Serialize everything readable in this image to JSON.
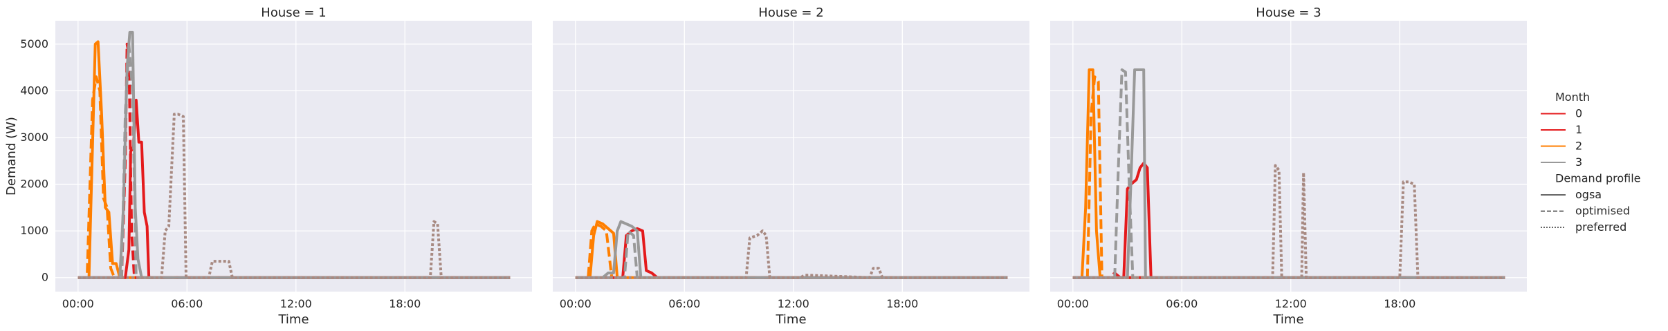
{
  "chart_data": {
    "type": "line",
    "facet_variable": "House",
    "panels": [
      {
        "title": "House = 1",
        "house": 1
      },
      {
        "title": "House = 2",
        "house": 2
      },
      {
        "title": "House = 3",
        "house": 3
      }
    ],
    "xlabel": "Time",
    "ylabel": "Demand (W)",
    "x_ticks": [
      "00:00",
      "06:00",
      "12:00",
      "18:00"
    ],
    "y_ticks": [
      0,
      1000,
      2000,
      3000,
      4000,
      5000
    ],
    "xlim_hours": [
      -1.25,
      25
    ],
    "ylim": [
      -300,
      5500
    ],
    "grid": true,
    "legend_position": "right",
    "legend": {
      "hue_title": "Month",
      "hue_entries": [
        {
          "label": "0",
          "color": "#e41a1c"
        },
        {
          "label": "1",
          "color": "#e41a1c"
        },
        {
          "label": "2",
          "color": "#ff7f00"
        },
        {
          "label": "3",
          "color": "#999999"
        }
      ],
      "style_title": "Demand profile",
      "style_entries": [
        {
          "label": "ogsa",
          "dash": "solid"
        },
        {
          "label": "optimised",
          "dash": "dashed"
        },
        {
          "label": "preferred",
          "dash": "dotted"
        }
      ]
    },
    "series": [
      {
        "house": 1,
        "month": "2",
        "profile": "ogsa",
        "color": "#ff7f00",
        "x": [
          0,
          0.6,
          0.95,
          1.1,
          1.3,
          1.5,
          1.7,
          1.9,
          2.1,
          2.3,
          23.8
        ],
        "y": [
          0,
          0,
          5000,
          5050,
          3500,
          1500,
          1400,
          300,
          300,
          0,
          0
        ]
      },
      {
        "house": 1,
        "month": "2",
        "profile": "optimised",
        "color": "#ff7f00",
        "x": [
          0,
          0.5,
          0.8,
          1.0,
          1.2,
          1.4,
          1.6,
          1.8,
          2.0,
          23.8
        ],
        "y": [
          0,
          0,
          3800,
          4300,
          4000,
          1700,
          1500,
          200,
          0,
          0
        ]
      },
      {
        "house": 1,
        "month": "1",
        "profile": "ogsa",
        "color": "#e41a1c",
        "x": [
          0,
          2.6,
          2.8,
          2.9,
          3.05,
          3.2,
          3.35,
          3.5,
          3.65,
          3.8,
          3.9,
          23.8
        ],
        "y": [
          0,
          0,
          600,
          2700,
          2800,
          3800,
          2900,
          2900,
          1400,
          1100,
          0,
          0
        ]
      },
      {
        "house": 1,
        "month": "0",
        "profile": "optimised",
        "color": "#e41a1c",
        "x": [
          0,
          2.4,
          2.6,
          2.7,
          2.8,
          2.95,
          3.1,
          23.8
        ],
        "y": [
          0,
          0,
          2500,
          5000,
          4800,
          1000,
          0,
          0
        ]
      },
      {
        "house": 1,
        "month": "3",
        "profile": "ogsa",
        "color": "#999999",
        "x": [
          0,
          2.3,
          2.5,
          2.7,
          2.85,
          3.0,
          3.15,
          3.3,
          3.5,
          23.8
        ],
        "y": [
          0,
          0,
          1500,
          4500,
          5250,
          5250,
          1500,
          400,
          0,
          0
        ]
      },
      {
        "house": 1,
        "month": "3",
        "profile": "optimised",
        "color": "#999999",
        "x": [
          0,
          2.4,
          2.6,
          2.8,
          3.0,
          3.2,
          23.8
        ],
        "y": [
          0,
          0,
          3500,
          5000,
          4000,
          0,
          0
        ]
      },
      {
        "house": 1,
        "month": "3",
        "profile": "preferred",
        "color": "#a88a82",
        "x": [
          0,
          4.6,
          4.8,
          5.0,
          5.3,
          5.5,
          5.8,
          5.95,
          6.1,
          7.2,
          7.4,
          7.7,
          8.0,
          8.3,
          8.5,
          19.4,
          19.6,
          19.8,
          20.0,
          23.8
        ],
        "y": [
          0,
          0,
          1000,
          1100,
          3500,
          3500,
          3450,
          0,
          0,
          0,
          350,
          350,
          350,
          350,
          0,
          0,
          1200,
          1150,
          0,
          0
        ]
      },
      {
        "house": 2,
        "month": "2",
        "profile": "ogsa",
        "color": "#ff7f00",
        "x": [
          0,
          0.8,
          1.0,
          1.2,
          1.5,
          1.8,
          2.1,
          2.3,
          23.8
        ],
        "y": [
          0,
          0,
          900,
          1200,
          1150,
          1050,
          950,
          0,
          0
        ]
      },
      {
        "house": 2,
        "month": "2",
        "profile": "optimised",
        "color": "#ff7f00",
        "x": [
          0,
          0.7,
          0.9,
          1.1,
          1.4,
          1.7,
          2.0,
          23.8
        ],
        "y": [
          0,
          0,
          1000,
          1150,
          1100,
          1000,
          0,
          0
        ]
      },
      {
        "house": 2,
        "month": "1",
        "profile": "ogsa",
        "color": "#e41a1c",
        "x": [
          0,
          2.6,
          2.8,
          3.1,
          3.4,
          3.7,
          3.9,
          4.2,
          4.5,
          23.8
        ],
        "y": [
          0,
          0,
          900,
          1000,
          1050,
          1000,
          150,
          100,
          0,
          0
        ]
      },
      {
        "house": 2,
        "month": "3",
        "profile": "ogsa",
        "color": "#999999",
        "x": [
          0,
          1.5,
          1.8,
          2.1,
          2.3,
          2.5,
          2.8,
          3.1,
          3.4,
          3.6,
          23.8
        ],
        "y": [
          0,
          0,
          100,
          100,
          1000,
          1200,
          1150,
          1100,
          1000,
          0,
          0
        ]
      },
      {
        "house": 2,
        "month": "3",
        "profile": "optimised",
        "color": "#999999",
        "x": [
          0,
          2.7,
          2.9,
          3.2,
          3.4,
          23.8
        ],
        "y": [
          0,
          0,
          1000,
          900,
          0,
          0
        ]
      },
      {
        "house": 2,
        "month": "3",
        "profile": "preferred",
        "color": "#a88a82",
        "x": [
          0,
          9.4,
          9.6,
          10.0,
          10.3,
          10.5,
          10.7,
          12.4,
          12.6,
          12.9,
          16.2,
          16.4,
          16.7,
          16.9,
          23.8
        ],
        "y": [
          0,
          0,
          850,
          900,
          1000,
          900,
          0,
          0,
          50,
          50,
          0,
          200,
          200,
          0,
          0
        ]
      },
      {
        "house": 3,
        "month": "2",
        "profile": "ogsa",
        "color": "#ff7f00",
        "x": [
          0,
          0.5,
          0.7,
          0.9,
          1.1,
          1.3,
          1.5,
          23.8
        ],
        "y": [
          0,
          0,
          1500,
          4450,
          4450,
          1000,
          0,
          0
        ]
      },
      {
        "house": 3,
        "month": "2",
        "profile": "optimised",
        "color": "#ff7f00",
        "x": [
          0,
          0.8,
          1.0,
          1.2,
          1.4,
          1.6,
          23.8
        ],
        "y": [
          0,
          0,
          3500,
          4300,
          4200,
          0,
          0
        ]
      },
      {
        "house": 3,
        "month": "1",
        "profile": "ogsa",
        "color": "#e41a1c",
        "x": [
          0,
          2.8,
          3.0,
          3.2,
          3.5,
          3.7,
          3.9,
          4.1,
          4.3,
          23.8
        ],
        "y": [
          0,
          0,
          1900,
          2000,
          2100,
          2350,
          2450,
          2350,
          0,
          0
        ]
      },
      {
        "house": 3,
        "month": "0",
        "profile": "optimised",
        "color": "#e41a1c",
        "x": [
          0,
          2.0,
          2.3,
          2.6,
          23.8
        ],
        "y": [
          0,
          0,
          100,
          0,
          0
        ]
      },
      {
        "house": 3,
        "month": "3",
        "profile": "ogsa",
        "color": "#999999",
        "x": [
          0,
          3.0,
          3.2,
          3.4,
          3.6,
          3.9,
          4.0,
          23.8
        ],
        "y": [
          0,
          0,
          2100,
          4450,
          4450,
          4450,
          0,
          0
        ]
      },
      {
        "house": 3,
        "month": "3",
        "profile": "optimised",
        "color": "#999999",
        "x": [
          0,
          2.3,
          2.5,
          2.7,
          2.9,
          3.1,
          3.3,
          23.8
        ],
        "y": [
          0,
          0,
          2300,
          4450,
          4400,
          2000,
          0,
          0
        ]
      },
      {
        "house": 3,
        "month": "3",
        "profile": "preferred",
        "color": "#a88a82",
        "x": [
          0,
          11.0,
          11.15,
          11.35,
          11.5,
          12.6,
          12.7,
          12.85,
          18.0,
          18.2,
          18.5,
          18.8,
          19.0,
          23.8
        ],
        "y": [
          0,
          0,
          2400,
          2300,
          0,
          0,
          2250,
          0,
          0,
          2050,
          2050,
          2000,
          0,
          0
        ]
      }
    ]
  }
}
